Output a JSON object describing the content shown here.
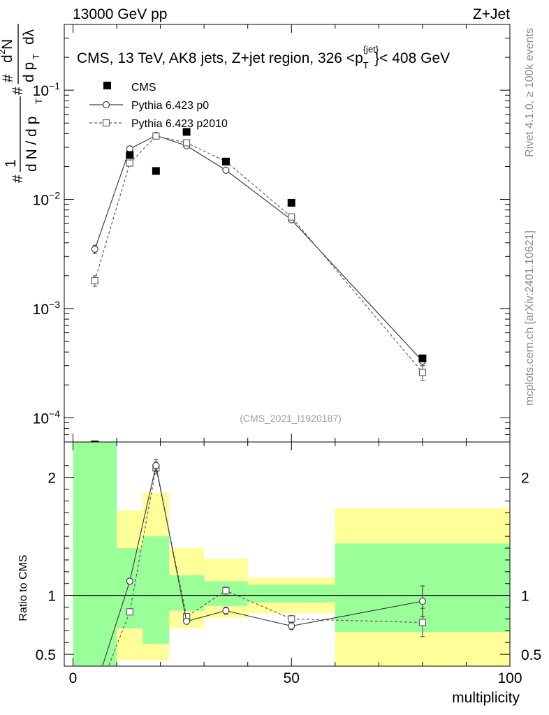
{
  "header": {
    "left": "13000 GeV pp",
    "right": "Z+Jet"
  },
  "side_labels": {
    "rivet": "Rivet 4.1.0, ≥ 100k events",
    "mcplots": "mcplots.cern.ch [arXiv:2401.10621]"
  },
  "watermark": "(CMS_2021_I1920187)",
  "ratio_ylabel": "Ratio to CMS",
  "colors": {
    "band_green": "#99ff99",
    "band_yellow": "#ffff99",
    "cms": "#000000",
    "p0": "#404040",
    "p2010": "#606060"
  },
  "chart_data": [
    {
      "type": "scatter",
      "panel": "main",
      "title": "CMS, 13 TeV, AK8 jets, Z+jet region, 326 <p_T^{jet}< 408 GeV",
      "title_parts": {
        "main": "CMS, 13 TeV, AK8 jets, Z+jet region, 326 <p",
        "sup": "{jet}",
        "sub": "T",
        "tail": "}< 408 GeV"
      },
      "ylabel": "1/N dN/dp_T d^2N/dp_T dλ",
      "ylabel_parts": {
        "hash": "#",
        "one": "1",
        "dn": "d N / d p",
        "t": "T",
        "d2n": "d",
        "two": "2",
        "n": "N",
        "dp": "d p",
        "dl": "dλ"
      },
      "yscale": "log",
      "ylim": [
        6e-05,
        0.4
      ],
      "xlim": [
        -2,
        100
      ],
      "ytick_labels": [
        {
          "value": 0.1,
          "mant": "10",
          "exp": "−1"
        },
        {
          "value": 0.01,
          "mant": "10",
          "exp": "−2"
        },
        {
          "value": 0.001,
          "mant": "10",
          "exp": "−3"
        },
        {
          "value": 0.0001,
          "mant": "10",
          "exp": "−4"
        }
      ],
      "legend": [
        {
          "key": "cms",
          "label": "CMS"
        },
        {
          "key": "p0",
          "label": "Pythia 6.423 p0"
        },
        {
          "key": "p2010",
          "label": "Pythia 6.423 p2010"
        }
      ],
      "legend_position": "top-left",
      "series": [
        {
          "name": "CMS",
          "key": "cms",
          "x": [
            5,
            13,
            19,
            26,
            35,
            50,
            80
          ],
          "y": [
            5.7e-05,
            0.0255,
            0.0182,
            0.0415,
            0.0222,
            0.0093,
            0.00035
          ]
        },
        {
          "name": "Pythia 6.423 p0",
          "key": "p0",
          "x": [
            5,
            13,
            19,
            26,
            35,
            50,
            80
          ],
          "y": [
            0.0035,
            0.029,
            0.0385,
            0.031,
            0.0185,
            0.0065,
            0.00033
          ],
          "yerr": [
            0.0003,
            0.0008,
            0.0009,
            0.0008,
            0.0005,
            0.0002,
            3e-05
          ]
        },
        {
          "name": "Pythia 6.423 p2010",
          "key": "p2010",
          "x": [
            5,
            13,
            19,
            26,
            35,
            50,
            80
          ],
          "y": [
            0.0018,
            0.0215,
            0.038,
            0.033,
            0.0222,
            0.0069,
            0.00026
          ],
          "yerr": [
            0.0002,
            0.0007,
            0.0009,
            0.0008,
            0.0006,
            0.0002,
            4e-05
          ]
        }
      ]
    },
    {
      "type": "line",
      "panel": "ratio",
      "ylabel": "Ratio to CMS",
      "xlabel": "multiplicity",
      "ylim": [
        0.4,
        2.3
      ],
      "xlim": [
        -2,
        100
      ],
      "xtick_labels": [
        {
          "value": 0,
          "label": "0"
        },
        {
          "value": 50,
          "label": "50"
        },
        {
          "value": 100,
          "label": "100"
        }
      ],
      "ytick_labels": [
        {
          "value": 0.5,
          "label": "0.5"
        },
        {
          "value": 1,
          "label": "1"
        },
        {
          "value": 2,
          "label": "2"
        }
      ],
      "bands": [
        {
          "x0": 0,
          "x1": 10,
          "yellow": [
            0.4,
            2.3
          ],
          "green": [
            0.4,
            2.3
          ]
        },
        {
          "x0": 10,
          "x1": 16,
          "yellow": [
            0.45,
            1.72
          ],
          "green": [
            0.72,
            1.4
          ]
        },
        {
          "x0": 16,
          "x1": 22,
          "yellow": [
            0.45,
            1.87
          ],
          "green": [
            0.59,
            1.5
          ]
        },
        {
          "x0": 22,
          "x1": 30,
          "yellow": [
            0.72,
            1.4
          ],
          "green": [
            0.87,
            1.17
          ]
        },
        {
          "x0": 30,
          "x1": 40,
          "yellow": [
            0.81,
            1.31
          ],
          "green": [
            0.91,
            1.12
          ]
        },
        {
          "x0": 40,
          "x1": 60,
          "yellow": [
            0.85,
            1.15
          ],
          "green": [
            0.94,
            1.09
          ]
        },
        {
          "x0": 60,
          "x1": 100,
          "yellow": [
            0.4,
            1.74
          ],
          "green": [
            0.69,
            1.44
          ]
        }
      ],
      "series": [
        {
          "name": "Pythia 6.423 p0",
          "key": "p0",
          "x": [
            5,
            13,
            19,
            26,
            35,
            50,
            80
          ],
          "y": [
            0.2,
            1.12,
            2.1,
            0.78,
            0.87,
            0.74,
            0.95
          ],
          "yerr": [
            0,
            0.02,
            0.05,
            0.02,
            0.03,
            0.03,
            0.13
          ]
        },
        {
          "name": "Pythia 6.423 p2010",
          "key": "p2010",
          "x": [
            5,
            13,
            19,
            26,
            35,
            50,
            80
          ],
          "y": [
            0.1,
            0.86,
            2.08,
            0.82,
            1.04,
            0.8,
            0.77
          ],
          "yerr": [
            0,
            0.02,
            0.05,
            0.02,
            0.03,
            0.03,
            0.12
          ]
        }
      ]
    }
  ]
}
